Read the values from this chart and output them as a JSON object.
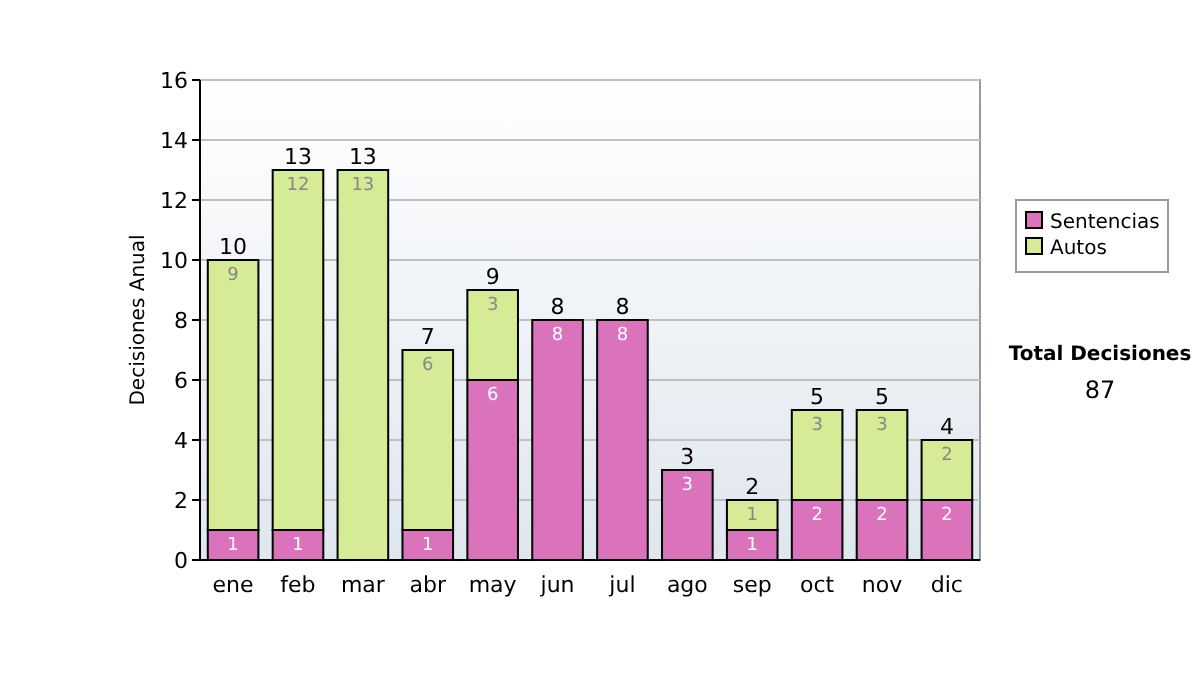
{
  "chart_data": {
    "type": "bar",
    "stacked": true,
    "ylabel": "Decisiones Anual",
    "categories": [
      "ene",
      "feb",
      "mar",
      "abr",
      "may",
      "jun",
      "jul",
      "ago",
      "sep",
      "oct",
      "nov",
      "dic"
    ],
    "series": [
      {
        "name": "Sentencias",
        "color": "#da72bc",
        "values": [
          1,
          1,
          0,
          1,
          6,
          8,
          8,
          3,
          1,
          2,
          2,
          2
        ],
        "value_labels": [
          "1",
          "1",
          null,
          "1",
          "6",
          "8",
          "8",
          "3",
          "1",
          "2",
          "2",
          "2"
        ]
      },
      {
        "name": "Autos",
        "color": "#d6eb96",
        "values": [
          9,
          12,
          13,
          6,
          3,
          0,
          0,
          0,
          1,
          3,
          3,
          2
        ],
        "value_labels": [
          "9",
          "12",
          "13",
          "6",
          "3",
          null,
          null,
          null,
          "1",
          "3",
          "3",
          "2"
        ]
      }
    ],
    "totals": [
      "10",
      "13",
      "13",
      "7",
      "9",
      "8",
      "8",
      "3",
      "2",
      "5",
      "5",
      "4"
    ],
    "ylim": [
      0,
      16
    ],
    "yticks": [
      0,
      2,
      4,
      6,
      8,
      10,
      12,
      14,
      16
    ],
    "grid": "y",
    "legend": "right",
    "annotations": [
      "Total Decisiones",
      "87"
    ]
  }
}
